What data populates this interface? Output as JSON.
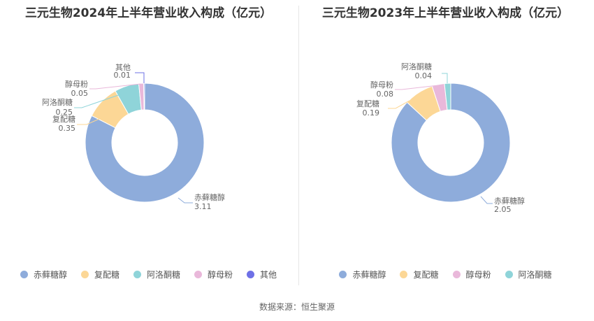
{
  "source": "数据来源：恒生聚源",
  "chart_data": [
    {
      "type": "pie",
      "title": "三元生物2024年上半年营业收入构成（亿元）",
      "categories": [
        "赤藓糖醇",
        "复配糖",
        "阿洛酮糖",
        "醇母粉",
        "其他"
      ],
      "values": [
        3.11,
        0.35,
        0.25,
        0.05,
        0.01
      ],
      "value_labels": [
        "3.11",
        "0.35",
        "0.25",
        "0.05",
        "0.01"
      ],
      "colors": [
        "#8eacdb",
        "#fcd796",
        "#8fd4d9",
        "#e9b8da",
        "#6e70e6"
      ],
      "legend": "bottom"
    },
    {
      "type": "pie",
      "title": "三元生物2023年上半年营业收入构成（亿元）",
      "categories": [
        "赤藓糖醇",
        "复配糖",
        "醇母粉",
        "阿洛酮糖"
      ],
      "values": [
        2.05,
        0.19,
        0.08,
        0.04
      ],
      "value_labels": [
        "2.05",
        "0.19",
        "0.08",
        "0.04"
      ],
      "colors": [
        "#8eacdb",
        "#fcd796",
        "#e9b8da",
        "#8fd4d9"
      ],
      "legend": "bottom"
    }
  ]
}
